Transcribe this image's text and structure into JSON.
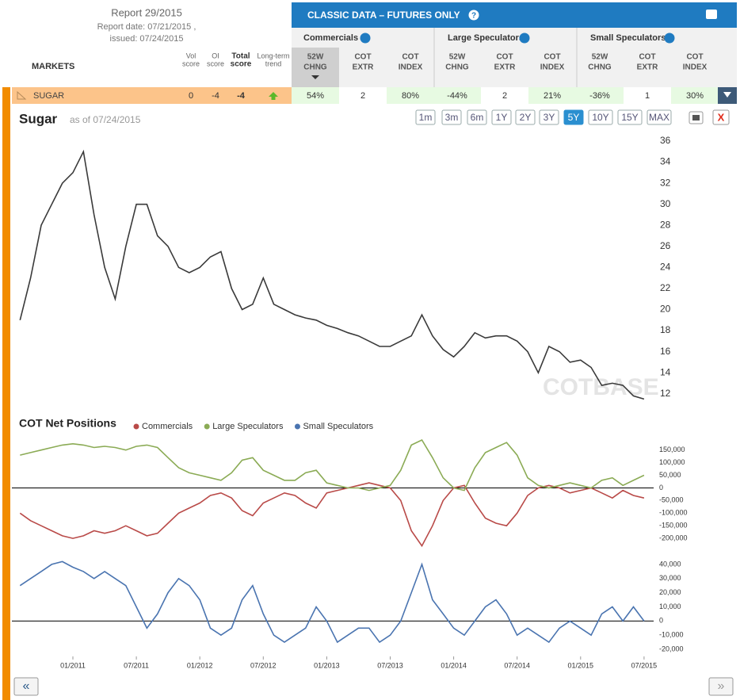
{
  "header": {
    "report": "Report 29/2015",
    "report_date": "Report date: 07/21/2015 ,",
    "issued": "issued: 07/24/2015"
  },
  "table": {
    "markets": "MARKETS",
    "columns": [
      [
        "Vol",
        "score"
      ],
      [
        "OI",
        "score"
      ],
      [
        "Total",
        "score"
      ],
      [
        "Long-term",
        "trend"
      ]
    ],
    "banner": "CLASSIC DATA – FUTURES ONLY",
    "groups": [
      "Commercials",
      "Large Speculators",
      "Small Speculators"
    ],
    "subcolumns": [
      [
        "52W",
        "CHNG"
      ],
      [
        "COT",
        "EXTR"
      ],
      [
        "COT",
        "INDEX"
      ]
    ],
    "row": {
      "market": "SUGAR",
      "scores": [
        "0",
        "-4",
        "-4"
      ],
      "cells": [
        "54%",
        "2",
        "80%",
        "-44%",
        "2",
        "21%",
        "-36%",
        "1",
        "30%"
      ]
    }
  },
  "ranges": [
    "1m",
    "3m",
    "6m",
    "1Y",
    "2Y",
    "3Y",
    "5Y",
    "10Y",
    "15Y",
    "MAX"
  ],
  "active_range": "5Y",
  "nav": [
    "«",
    "»"
  ],
  "watermark": "COTBASE",
  "chart_data": [
    {
      "type": "line",
      "title": "Sugar",
      "subtitle": "as of 07/24/2015",
      "color": "#3a3a3a",
      "values": [
        19,
        23,
        28,
        30,
        32,
        33,
        35,
        29,
        24,
        21,
        26,
        30,
        30,
        27,
        26,
        24,
        23.5,
        24,
        25,
        25.5,
        22,
        20,
        20.5,
        23,
        20.5,
        20,
        19.5,
        19.2,
        19,
        18.5,
        18.2,
        17.8,
        17.5,
        17,
        16.5,
        16.5,
        17,
        17.5,
        19.5,
        17.5,
        16.2,
        15.5,
        16.5,
        17.8,
        17.3,
        17.5,
        17.5,
        17,
        16,
        14,
        16.5,
        16,
        15,
        15.2,
        14.5,
        12.8,
        13,
        12.8,
        11.8,
        11.5
      ],
      "ylim": [
        11,
        36.6
      ],
      "yticks": [
        12,
        14,
        16,
        18,
        20,
        22,
        24,
        26,
        28,
        30,
        32,
        34,
        36
      ]
    },
    {
      "type": "line",
      "title": "COT Net Positions",
      "categories": [
        null,
        null,
        null,
        null,
        null,
        "01/2011",
        null,
        null,
        null,
        null,
        null,
        "07/2011",
        null,
        null,
        null,
        null,
        null,
        "01/2012",
        null,
        null,
        null,
        null,
        null,
        "07/2012",
        null,
        null,
        null,
        null,
        null,
        "01/2013",
        null,
        null,
        null,
        null,
        null,
        "07/2013",
        null,
        null,
        null,
        null,
        null,
        "01/2014",
        null,
        null,
        null,
        null,
        null,
        "07/2014",
        null,
        null,
        null,
        null,
        null,
        "01/2015",
        null,
        null,
        null,
        null,
        null,
        "07/2015"
      ],
      "series": [
        {
          "name": "Commercials",
          "color": "#b94a48",
          "values": [
            -100000,
            -130000,
            -150000,
            -170000,
            -190000,
            -200000,
            -190000,
            -170000,
            -180000,
            -170000,
            -150000,
            -170000,
            -190000,
            -180000,
            -140000,
            -100000,
            -80000,
            -60000,
            -30000,
            -20000,
            -40000,
            -90000,
            -110000,
            -60000,
            -40000,
            -20000,
            -30000,
            -60000,
            -80000,
            -20000,
            -10000,
            0,
            10000,
            20000,
            10000,
            0,
            -50000,
            -170000,
            -230000,
            -150000,
            -50000,
            0,
            10000,
            -60000,
            -120000,
            -140000,
            -150000,
            -100000,
            -30000,
            0,
            10000,
            0,
            -20000,
            -10000,
            0,
            -20000,
            -40000,
            -10000,
            -30000,
            -40000
          ]
        },
        {
          "name": "Large Speculators",
          "color": "#8bab55",
          "values": [
            130000,
            140000,
            150000,
            160000,
            170000,
            175000,
            170000,
            160000,
            165000,
            160000,
            150000,
            165000,
            170000,
            160000,
            120000,
            80000,
            60000,
            50000,
            40000,
            30000,
            60000,
            110000,
            120000,
            70000,
            50000,
            30000,
            30000,
            60000,
            70000,
            20000,
            10000,
            0,
            0,
            -10000,
            0,
            10000,
            70000,
            170000,
            190000,
            120000,
            40000,
            0,
            -10000,
            80000,
            140000,
            160000,
            180000,
            130000,
            40000,
            10000,
            0,
            10000,
            20000,
            10000,
            0,
            30000,
            40000,
            10000,
            30000,
            50000
          ]
        },
        {
          "name": "Small Speculators",
          "color": "#4a74b0",
          "axis": "y2",
          "values": [
            25000,
            30000,
            35000,
            40000,
            42000,
            38000,
            35000,
            30000,
            35000,
            30000,
            25000,
            10000,
            -5000,
            5000,
            20000,
            30000,
            25000,
            15000,
            -5000,
            -10000,
            -5000,
            15000,
            25000,
            5000,
            -10000,
            -15000,
            -10000,
            -5000,
            10000,
            0,
            -15000,
            -10000,
            -5000,
            -5000,
            -15000,
            -10000,
            0,
            20000,
            40000,
            15000,
            5000,
            -5000,
            -10000,
            0,
            10000,
            15000,
            5000,
            -10000,
            -5000,
            -10000,
            -15000,
            -5000,
            0,
            -5000,
            -10000,
            5000,
            10000,
            0,
            10000,
            0
          ]
        }
      ],
      "ylim": [
        -250000,
        190000
      ],
      "yticks": [
        {
          "value": 150000,
          "label": "150,000"
        },
        {
          "value": 100000,
          "label": "100,000"
        },
        {
          "value": 50000,
          "label": "50,000"
        },
        0,
        {
          "value": -50000,
          "label": "-50,000"
        },
        {
          "value": -100000,
          "label": "-100,000"
        },
        {
          "value": -150000,
          "label": "-150,000"
        },
        {
          "value": -200000,
          "label": "-200,000"
        }
      ],
      "y2lim": [
        -25000,
        45000
      ],
      "y2ticks": [
        {
          "value": 40000,
          "label": "40,000"
        },
        {
          "value": 30000,
          "label": "30,000"
        },
        {
          "value": 20000,
          "label": "20,000"
        },
        {
          "value": 10000,
          "label": "10,000"
        },
        0,
        {
          "value": -10000,
          "label": "-10,000"
        },
        {
          "value": -20000,
          "label": "-20,000"
        }
      ]
    }
  ]
}
